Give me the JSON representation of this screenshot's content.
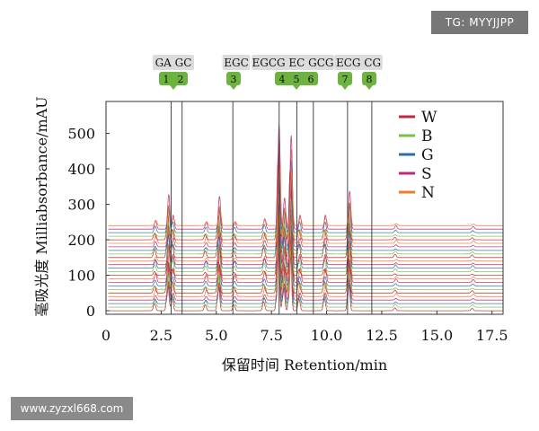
{
  "watermarks": {
    "top_right": "TG: MYYJJPP",
    "bottom_left": "www.zyzxl668.com"
  },
  "chart_data": {
    "type": "line",
    "title": "",
    "xlabel": "保留时间 Retention/min",
    "ylabel": "毫吸光度 Milliabsorbance/mAU",
    "xlim": [
      0,
      18
    ],
    "ylim": [
      -10,
      590
    ],
    "xticks": [
      0,
      2.5,
      5.0,
      7.5,
      10.0,
      12.5,
      15.0,
      17.5
    ],
    "xtick_labels": [
      "0",
      "2.5",
      "5.0",
      "7.5",
      "10.0",
      "12.5",
      "15.0",
      "17.5"
    ],
    "yticks": [
      0,
      100,
      200,
      300,
      400,
      500
    ],
    "ytick_labels": [
      "0",
      "100",
      "200",
      "300",
      "400",
      "500"
    ],
    "grid": false,
    "legend_position": "top-right",
    "legend": [
      {
        "name": "W",
        "color": "#c0283c"
      },
      {
        "name": "B",
        "color": "#7ac143"
      },
      {
        "name": "G",
        "color": "#2a6ea6"
      },
      {
        "name": "S",
        "color": "#c0287a"
      },
      {
        "name": "N",
        "color": "#f07a32"
      }
    ],
    "compounds": [
      {
        "name": "GA",
        "number": "1",
        "rt": 2.95
      },
      {
        "name": "GC",
        "number": "2",
        "rt": 3.45
      },
      {
        "name": "EGC",
        "number": "3",
        "rt": 5.75
      },
      {
        "name": "EGCG",
        "number": "4",
        "rt": 7.85
      },
      {
        "name": "EC",
        "number": "5",
        "rt": 8.65
      },
      {
        "name": "GCG",
        "number": "6",
        "rt": 9.4
      },
      {
        "name": "ECG",
        "number": "7",
        "rt": 10.95
      },
      {
        "name": "CG",
        "number": "8",
        "rt": 12.05
      }
    ],
    "series_count": 25,
    "baseline_start": 0,
    "baseline_step": 10,
    "peaks": [
      {
        "rt": 2.2,
        "height": 25
      },
      {
        "rt": 2.8,
        "height": 100
      },
      {
        "rt": 3.0,
        "height": 40
      },
      {
        "rt": 4.5,
        "height": 20
      },
      {
        "rt": 5.1,
        "height": 95
      },
      {
        "rt": 5.8,
        "height": 20
      },
      {
        "rt": 7.15,
        "height": 30
      },
      {
        "rt": 7.8,
        "height": 300
      },
      {
        "rt": 8.05,
        "height": 90
      },
      {
        "rt": 8.35,
        "height": 270
      },
      {
        "rt": 8.75,
        "height": 40
      },
      {
        "rt": 9.9,
        "height": 40
      },
      {
        "rt": 11.0,
        "height": 110
      },
      {
        "rt": 13.1,
        "height": 10
      },
      {
        "rt": 16.6,
        "height": 8
      }
    ]
  }
}
